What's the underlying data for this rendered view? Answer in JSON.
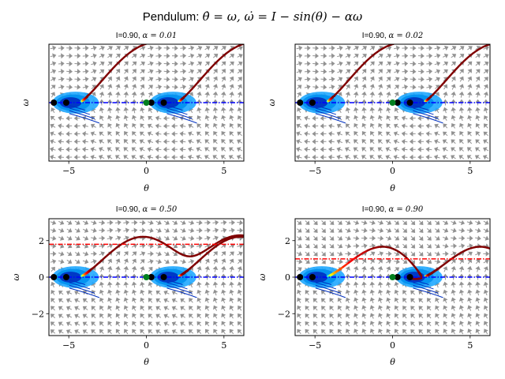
{
  "figure": {
    "suptitle_prefix": "Pendulum: ",
    "suptitle_math": "θ̇ = ω,   ω̇ = I − sin(θ) − αω"
  },
  "chart_data": [
    {
      "type": "line",
      "title_prefix": "I=0.90, ",
      "title_math": "α = 0.01",
      "I": 0.9,
      "alpha": 0.01,
      "xlabel": "θ",
      "ylabel": "ω",
      "xlim": [
        -6.28,
        6.28
      ],
      "ylim": [
        -3.2,
        3.2
      ],
      "xticks": [
        -5,
        0,
        5
      ],
      "xtick_labels": [
        "−5",
        "0",
        "5"
      ],
      "yticks": [],
      "ytick_labels": [],
      "zero_line_color": "#0000ff",
      "limit_cycle_level": null,
      "fixed_point": [
        0,
        0
      ]
    },
    {
      "type": "line",
      "title_prefix": "I=0.90, ",
      "title_math": "α = 0.02",
      "I": 0.9,
      "alpha": 0.02,
      "xlabel": "θ",
      "ylabel": "ω",
      "xlim": [
        -6.28,
        6.28
      ],
      "ylim": [
        -3.2,
        3.2
      ],
      "xticks": [
        -5,
        0,
        5
      ],
      "xtick_labels": [
        "−5",
        "0",
        "5"
      ],
      "yticks": [],
      "ytick_labels": [],
      "zero_line_color": "#0000ff",
      "limit_cycle_level": null,
      "fixed_point": [
        0,
        0
      ]
    },
    {
      "type": "line",
      "title_prefix": "I=0.90, ",
      "title_math": "α = 0.50",
      "I": 0.9,
      "alpha": 0.5,
      "xlabel": "θ",
      "ylabel": "ω",
      "xlim": [
        -6.28,
        6.28
      ],
      "ylim": [
        -3.2,
        3.2
      ],
      "xticks": [
        -5,
        0,
        5
      ],
      "xtick_labels": [
        "−5",
        "0",
        "5"
      ],
      "yticks": [
        -2,
        0,
        2
      ],
      "ytick_labels": [
        "−2",
        "0",
        "2"
      ],
      "zero_line_color": "#0000ff",
      "limit_cycle_level": 1.8,
      "limit_cycle_color": "#ff0000",
      "fixed_point": [
        0,
        0
      ]
    },
    {
      "type": "line",
      "title_prefix": "I=0.90, ",
      "title_math": "α = 0.90",
      "I": 0.9,
      "alpha": 0.9,
      "xlabel": "θ",
      "ylabel": "ω",
      "xlim": [
        -6.28,
        6.28
      ],
      "ylim": [
        -3.2,
        3.2
      ],
      "xticks": [
        -5,
        0,
        5
      ],
      "xtick_labels": [
        "−5",
        "0",
        "5"
      ],
      "yticks": [
        -2,
        0,
        2
      ],
      "ytick_labels": [
        "−2",
        "0",
        "2"
      ],
      "zero_line_color": "#0000ff",
      "limit_cycle_level": 1.0,
      "limit_cycle_color": "#ff0000",
      "fixed_point": [
        0,
        0
      ]
    }
  ],
  "colors": {
    "quiver": "#808080",
    "fixed_point": "#007f1f",
    "saddle": "#000000",
    "basin_dark": "#0030c0",
    "basin_light": "#20a8ff"
  }
}
